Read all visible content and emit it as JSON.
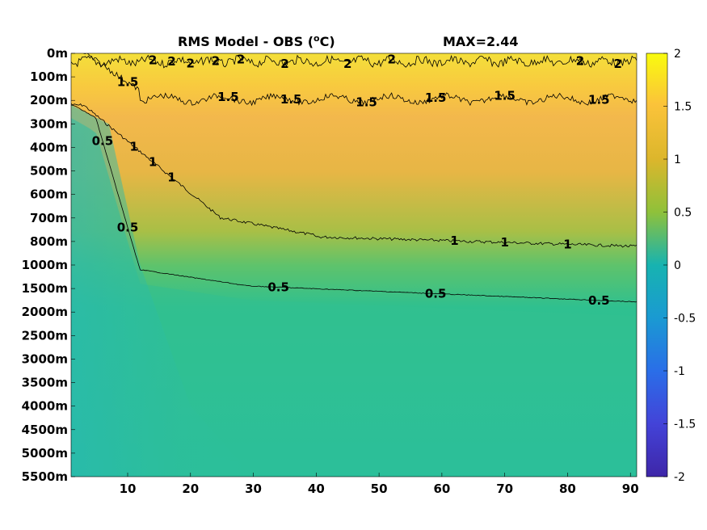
{
  "chart_data": {
    "type": "heatmap",
    "title_prefix": "RMS Model - OBS (",
    "title_sup": "o",
    "title_suffix": "C)",
    "annotation": "MAX=2.44",
    "x_ticks": [
      10,
      20,
      30,
      40,
      50,
      60,
      70,
      80,
      90
    ],
    "xlim": [
      1,
      91
    ],
    "y_labels": [
      "0m",
      "100m",
      "200m",
      "300m",
      "400m",
      "500m",
      "600m",
      "700m",
      "800m",
      "1000m",
      "1500m",
      "2000m",
      "2500m",
      "3000m",
      "3500m",
      "4000m",
      "4500m",
      "5000m",
      "5500m"
    ],
    "colorbar": {
      "min": -2,
      "max": 2,
      "ticks": [
        "2",
        "1.5",
        "1",
        "0.5",
        "0",
        "-0.5",
        "-1",
        "-1.5",
        "-2"
      ]
    },
    "contours": [
      {
        "level": 2,
        "labels": [
          "2",
          "2",
          "2",
          "2",
          "2",
          "2",
          "2",
          "2",
          "2",
          "2"
        ]
      },
      {
        "level": 1.5,
        "labels": [
          "1.5",
          "1.5",
          "1.5",
          "1.5",
          "1.5",
          "1.5",
          "1.5"
        ]
      },
      {
        "level": 1,
        "labels": [
          "1",
          "1",
          "1",
          "1",
          "1",
          "1"
        ]
      },
      {
        "level": 0.5,
        "labels": [
          "0.5",
          "0.5",
          "0.5",
          "0.5",
          "0.5"
        ]
      }
    ]
  }
}
